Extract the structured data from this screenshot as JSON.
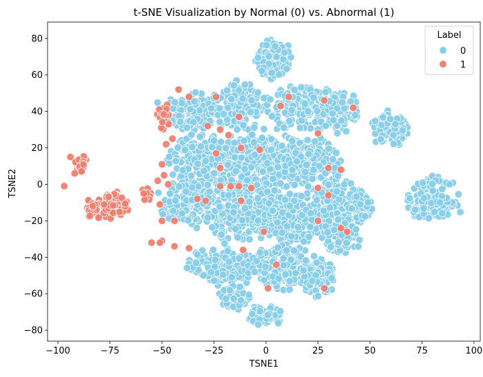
{
  "chart_data": {
    "type": "scatter",
    "title": "t-SNE Visualization by Normal (0) vs. Abnormal (1)",
    "xlabel": "TSNE1",
    "ylabel": "TSNE2",
    "xlim": [
      -105,
      103
    ],
    "ylim": [
      -86,
      89
    ],
    "xticks": [
      -100,
      -75,
      -50,
      -25,
      0,
      25,
      50,
      75,
      100
    ],
    "yticks": [
      -80,
      -60,
      -40,
      -20,
      0,
      20,
      40,
      60,
      80
    ],
    "grid": false,
    "legend": {
      "title": "Label",
      "placement": "top-right",
      "entries": [
        {
          "label": "0",
          "color": "#87CEEB"
        },
        {
          "label": "1",
          "color": "#F08070"
        }
      ]
    },
    "series": [
      {
        "name": "0",
        "color": "#87CEEB",
        "clusters": [
          {
            "cx": 4,
            "cy": 68,
            "rx": 9,
            "ry": 11,
            "n": 110
          },
          {
            "cx": -35,
            "cy": 40,
            "rx": 14,
            "ry": 12,
            "n": 140
          },
          {
            "cx": -12,
            "cy": 42,
            "rx": 14,
            "ry": 13,
            "n": 150
          },
          {
            "cx": 18,
            "cy": 42,
            "rx": 16,
            "ry": 13,
            "n": 160
          },
          {
            "cx": 35,
            "cy": 40,
            "rx": 10,
            "ry": 12,
            "n": 100
          },
          {
            "cx": -30,
            "cy": 12,
            "rx": 17,
            "ry": 16,
            "n": 220
          },
          {
            "cx": 0,
            "cy": 12,
            "rx": 22,
            "ry": 16,
            "n": 300
          },
          {
            "cx": 22,
            "cy": 10,
            "rx": 14,
            "ry": 15,
            "n": 170
          },
          {
            "cx": -38,
            "cy": -10,
            "rx": 13,
            "ry": 12,
            "n": 130
          },
          {
            "cx": -10,
            "cy": -15,
            "rx": 20,
            "ry": 17,
            "n": 300
          },
          {
            "cx": 15,
            "cy": -18,
            "rx": 16,
            "ry": 14,
            "n": 220
          },
          {
            "cx": 33,
            "cy": -10,
            "rx": 10,
            "ry": 12,
            "n": 100
          },
          {
            "cx": 45,
            "cy": -12,
            "rx": 6,
            "ry": 10,
            "n": 80
          },
          {
            "cx": -22,
            "cy": -45,
            "rx": 16,
            "ry": 10,
            "n": 180
          },
          {
            "cx": 8,
            "cy": -45,
            "rx": 15,
            "ry": 12,
            "n": 200
          },
          {
            "cx": 25,
            "cy": -50,
            "rx": 8,
            "ry": 12,
            "n": 90
          },
          {
            "cx": -15,
            "cy": -62,
            "rx": 8,
            "ry": 6,
            "n": 60
          },
          {
            "cx": 0,
            "cy": -72,
            "rx": 8,
            "ry": 6,
            "n": 60
          },
          {
            "cx": 37,
            "cy": -28,
            "rx": 10,
            "ry": 10,
            "n": 80
          },
          {
            "cx": 60,
            "cy": 30,
            "rx": 10,
            "ry": 9,
            "n": 120
          },
          {
            "cx": 80,
            "cy": -8,
            "rx": 12,
            "ry": 12,
            "n": 150
          }
        ]
      },
      {
        "name": "1",
        "color": "#F08070",
        "clusters": [
          {
            "cx": -89,
            "cy": 11,
            "rx": 3,
            "ry": 5,
            "n": 28
          },
          {
            "cx": -74,
            "cy": -12,
            "rx": 8,
            "ry": 8,
            "n": 75
          },
          {
            "cx": -84,
            "cy": -13,
            "rx": 4,
            "ry": 5,
            "n": 22
          },
          {
            "cx": -49,
            "cy": 37,
            "rx": 4,
            "ry": 8,
            "n": 22
          },
          {
            "cx": -58,
            "cy": -6,
            "rx": 3,
            "ry": 4,
            "n": 10
          }
        ],
        "points": [
          [
            -97,
            -1
          ],
          [
            -94,
            15
          ],
          [
            -92,
            6
          ],
          [
            -42,
            52
          ],
          [
            -37,
            48
          ],
          [
            -24,
            48
          ],
          [
            -13,
            37
          ],
          [
            7,
            43
          ],
          [
            11,
            48
          ],
          [
            28,
            46
          ],
          [
            42,
            42
          ],
          [
            25,
            28
          ],
          [
            -28,
            32
          ],
          [
            -22,
            30
          ],
          [
            -18,
            27
          ],
          [
            -24,
            17
          ],
          [
            -12,
            20
          ],
          [
            -3,
            19
          ],
          [
            -22,
            9
          ],
          [
            -45,
            25
          ],
          [
            -48,
            22
          ],
          [
            -50,
            11
          ],
          [
            -49,
            5
          ],
          [
            -52,
            2
          ],
          [
            -47,
            0
          ],
          [
            -22,
            -1
          ],
          [
            -17,
            -1
          ],
          [
            -13,
            -1
          ],
          [
            -7,
            -2
          ],
          [
            -12,
            -9
          ],
          [
            -33,
            -8
          ],
          [
            -29,
            -9
          ],
          [
            -51,
            -11
          ],
          [
            -50,
            -20
          ],
          [
            -44,
            -20
          ],
          [
            -55,
            -32
          ],
          [
            -50,
            -31
          ],
          [
            -51,
            -32
          ],
          [
            -44,
            -34
          ],
          [
            -37,
            -35
          ],
          [
            -11,
            -36
          ],
          [
            -1,
            -26
          ],
          [
            5,
            -44
          ],
          [
            1,
            -57
          ],
          [
            25,
            -2
          ],
          [
            30,
            -6
          ],
          [
            30,
            9
          ],
          [
            36,
            8
          ],
          [
            25,
            -20
          ],
          [
            36,
            -24
          ],
          [
            39,
            -26
          ],
          [
            28,
            -57
          ]
        ]
      }
    ]
  }
}
